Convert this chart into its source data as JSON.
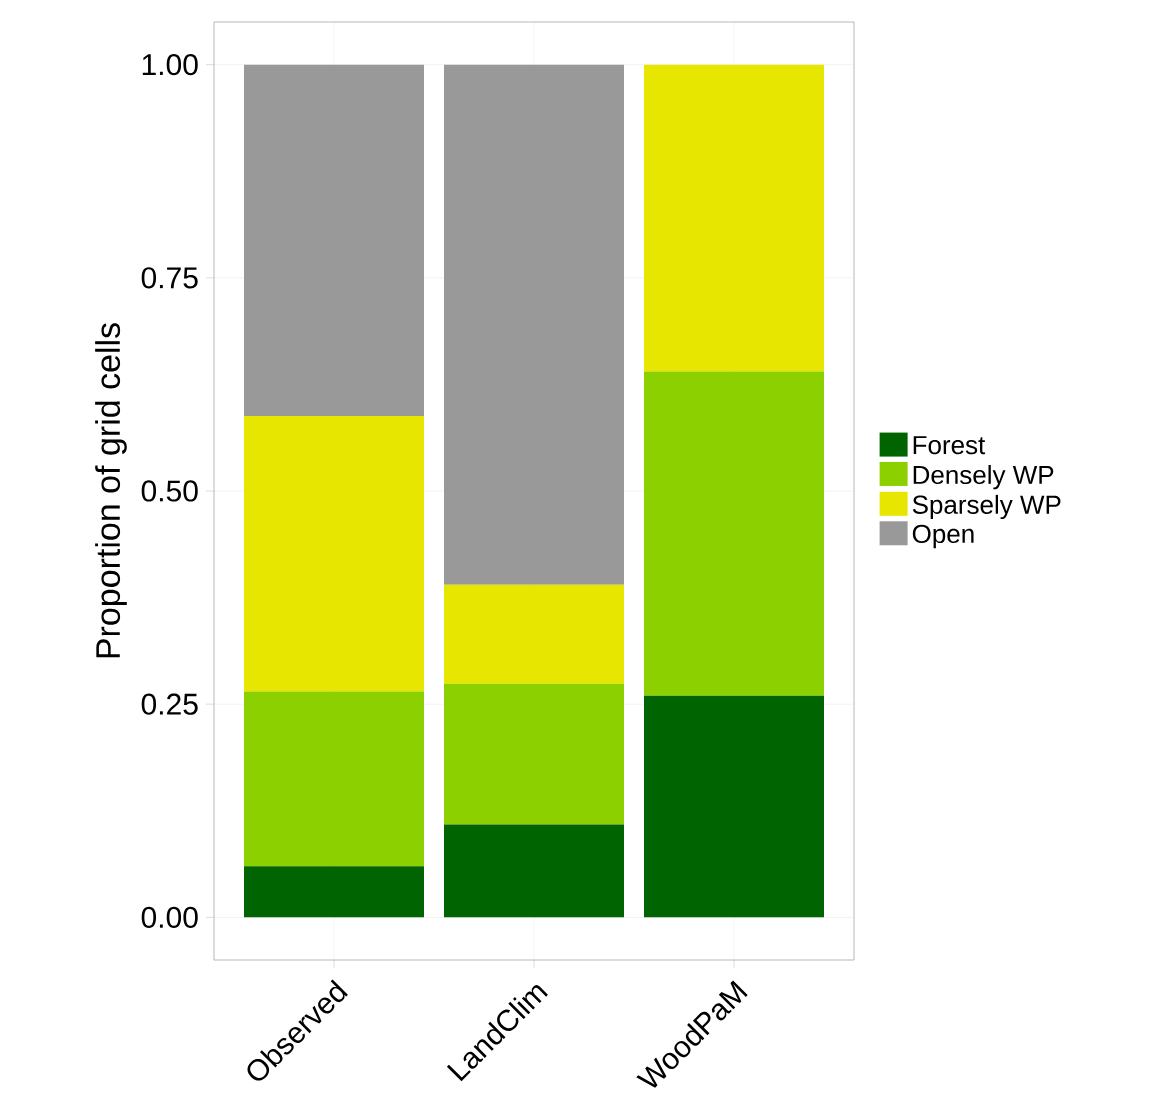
{
  "chart_data": {
    "type": "bar",
    "stacked": true,
    "ylabel": "Proportion of grid cells",
    "categories": [
      "Observed",
      "LandClim",
      "WoodPaM"
    ],
    "series": [
      {
        "name": "Forest",
        "color": "#006400",
        "values": [
          0.06,
          0.109,
          0.26
        ]
      },
      {
        "name": "Densely WP",
        "color": "#8cd000",
        "values": [
          0.205,
          0.165,
          0.38
        ]
      },
      {
        "name": "Sparsely WP",
        "color": "#e6e600",
        "values": [
          0.323,
          0.116,
          0.36
        ]
      },
      {
        "name": "Open",
        "color": "#999999",
        "values": [
          0.412,
          0.61,
          0
        ]
      }
    ],
    "ylim": [
      -0.05,
      1.05
    ],
    "yticks": [
      {
        "value": 0,
        "label": "0.00"
      },
      {
        "value": 0.25,
        "label": "0.25"
      },
      {
        "value": 0.5,
        "label": "0.50"
      },
      {
        "value": 0.75,
        "label": "0.75"
      },
      {
        "value": 1,
        "label": "1.00"
      }
    ],
    "grid": true,
    "legend": "right"
  }
}
